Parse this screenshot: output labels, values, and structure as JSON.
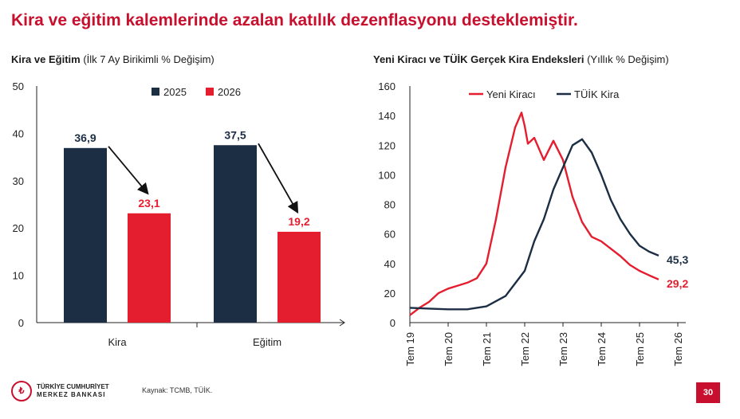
{
  "headline": "Kira ve eğitim kalemlerinde azalan katılık dezenflasyonu desteklemiştir.",
  "source": "Kaynak: TCMB, TÜİK.",
  "page_number": "30",
  "logo": {
    "line1": "TÜRKİYE CUMHURİYET",
    "line2": "MERKEZ BANKASI",
    "mark_icon": "tcmb-logo-icon"
  },
  "colors": {
    "accent": "#c8102e",
    "navy": "#1c2e44",
    "red": "#e41e2f"
  },
  "left_chart": {
    "title_bold": "Kira ve Eğitim",
    "title_rest": " (İlk 7 Ay Birikimli % Değişim)"
  },
  "right_chart": {
    "title_bold": "Yeni Kiracı ve TÜİK Gerçek Kira Endeksleri",
    "title_rest": " (Yıllık % Değişim)"
  },
  "chart_data": [
    {
      "type": "bar",
      "categories": [
        "Kira",
        "Eğitim"
      ],
      "series": [
        {
          "name": "2025",
          "values": [
            36.9,
            37.5
          ],
          "labels": [
            "36,9",
            "37,5"
          ],
          "color": "#1c2e44"
        },
        {
          "name": "2026",
          "values": [
            23.1,
            19.2
          ],
          "labels": [
            "23,1",
            "19,2"
          ],
          "color": "#e41e2f"
        }
      ],
      "ylim": [
        0,
        50
      ],
      "yticks": [
        "0",
        "10",
        "20",
        "30",
        "40",
        "50"
      ],
      "legend": "top-center",
      "grid": false,
      "annotations": "arrows from 2025 bar to 2026 bar in each category"
    },
    {
      "type": "line",
      "xticks": [
        "Tem 19",
        "Tem 20",
        "Tem 21",
        "Tem 22",
        "Tem 23",
        "Tem 24",
        "Tem 25",
        "Tem 26"
      ],
      "ylim": [
        0,
        160
      ],
      "yticks": [
        "0",
        "20",
        "40",
        "60",
        "80",
        "100",
        "120",
        "140",
        "160"
      ],
      "legend": "top-center",
      "grid": false,
      "series": [
        {
          "name": "Yeni Kiracı",
          "color": "#e41e2f",
          "end_label": "29,2",
          "points": [
            [
              "Tem 19",
              5
            ],
            [
              "Eki 19",
              10
            ],
            [
              "Oca 20",
              14
            ],
            [
              "Nis 20",
              20
            ],
            [
              "Tem 20",
              23
            ],
            [
              "Eki 20",
              25
            ],
            [
              "Oca 21",
              27
            ],
            [
              "Nis 21",
              30
            ],
            [
              "Tem 21",
              40
            ],
            [
              "Eki 21",
              70
            ],
            [
              "Oca 22",
              105
            ],
            [
              "Nis 22",
              132
            ],
            [
              "Haz 22",
              142
            ],
            [
              "Tem 22",
              133
            ],
            [
              "Ağu 22",
              121
            ],
            [
              "Eki 22",
              125
            ],
            [
              "Oca 23",
              110
            ],
            [
              "Nis 23",
              123
            ],
            [
              "Tem 23",
              110
            ],
            [
              "Eki 23",
              85
            ],
            [
              "Oca 24",
              68
            ],
            [
              "Nis 24",
              58
            ],
            [
              "Tem 24",
              55
            ],
            [
              "Eki 24",
              50
            ],
            [
              "Oca 25",
              45
            ],
            [
              "Nis 25",
              39
            ],
            [
              "Tem 25",
              35
            ],
            [
              "Eki 25",
              32
            ],
            [
              "Oca 26",
              29.2
            ]
          ]
        },
        {
          "name": "TÜİK Kira",
          "color": "#1c2e44",
          "end_label": "45,3",
          "points": [
            [
              "Tem 19",
              10
            ],
            [
              "Oca 20",
              9.5
            ],
            [
              "Tem 20",
              9
            ],
            [
              "Oca 21",
              9
            ],
            [
              "Tem 21",
              11
            ],
            [
              "Oca 22",
              18
            ],
            [
              "Tem 22",
              35
            ],
            [
              "Eki 22",
              55
            ],
            [
              "Oca 23",
              70
            ],
            [
              "Nis 23",
              90
            ],
            [
              "Tem 23",
              105
            ],
            [
              "Eki 23",
              120
            ],
            [
              "Oca 24",
              124
            ],
            [
              "Nis 24",
              115
            ],
            [
              "Tem 24",
              100
            ],
            [
              "Eki 24",
              83
            ],
            [
              "Oca 25",
              70
            ],
            [
              "Nis 25",
              60
            ],
            [
              "Tem 25",
              52
            ],
            [
              "Eki 25",
              48
            ],
            [
              "Oca 26",
              45.3
            ]
          ]
        }
      ]
    }
  ]
}
